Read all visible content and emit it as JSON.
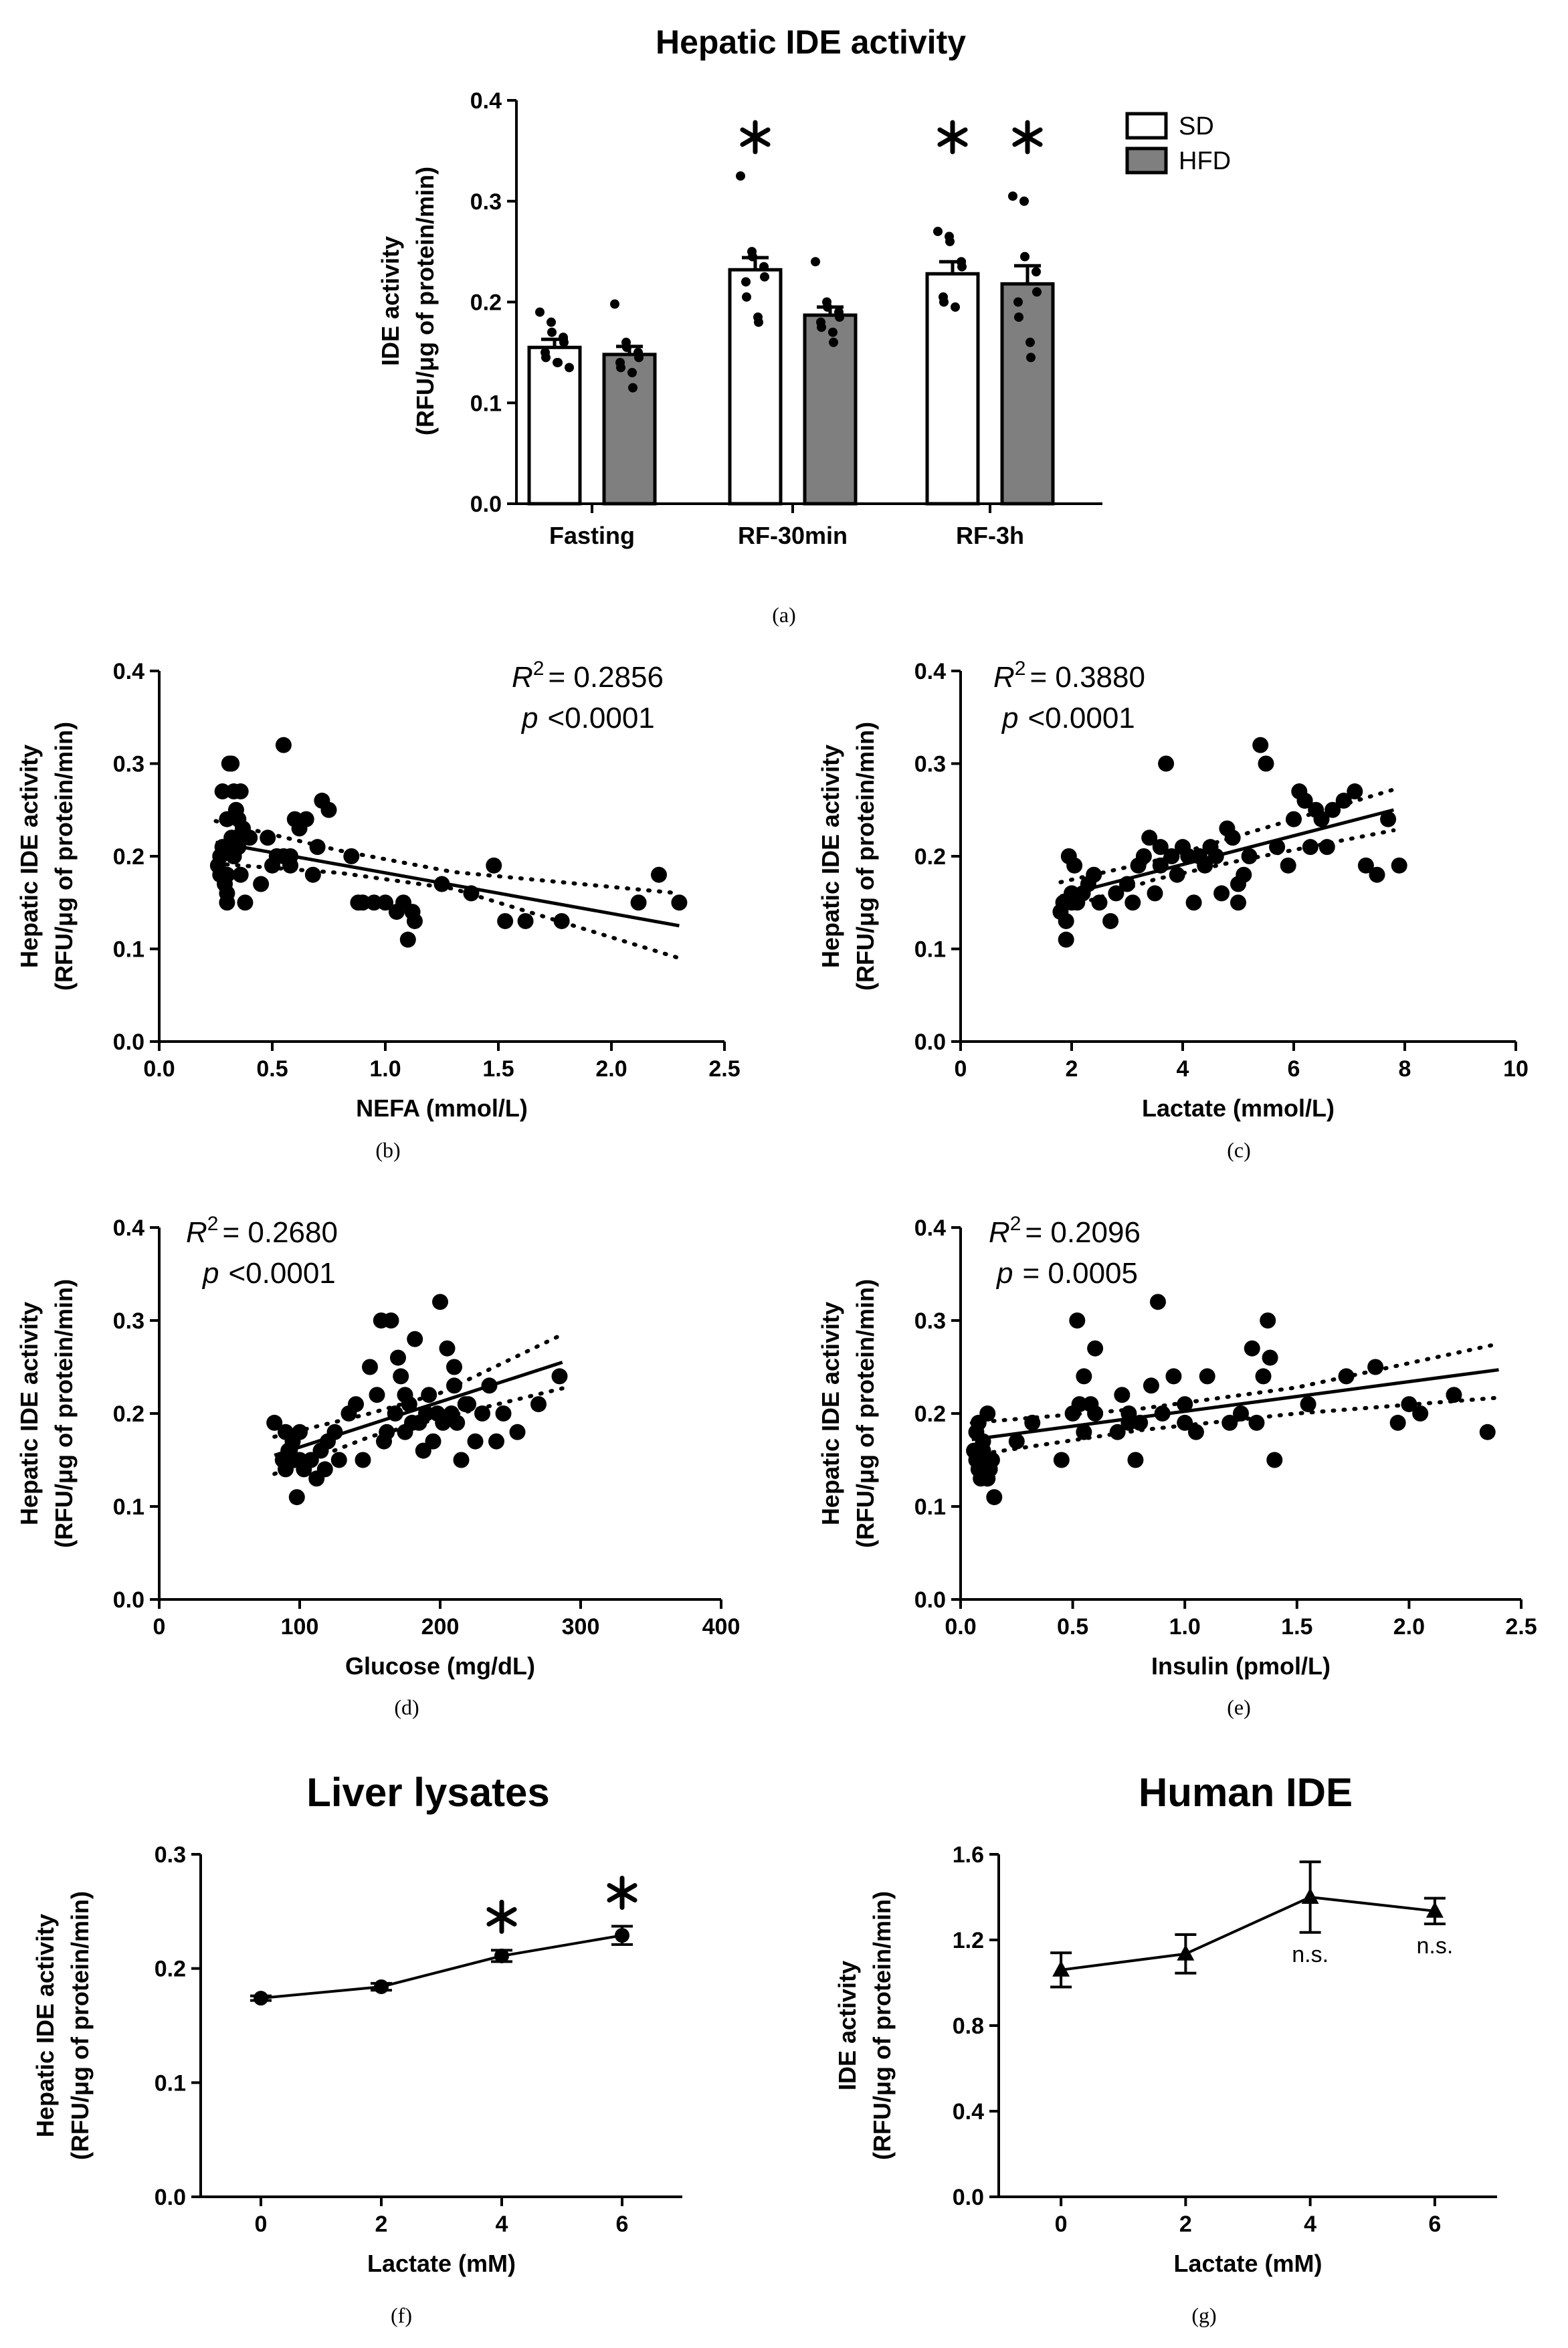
{
  "chart_data": [
    {
      "type": "bar",
      "panel_label": "(a)",
      "title": "Hepatic IDE activity",
      "ylabel_lines": [
        "IDE activity",
        "(RFU/μg of protein/min)"
      ],
      "xlabel": "",
      "ylim": [
        0,
        0.4
      ],
      "yticks": [
        "0.0",
        "0.1",
        "0.2",
        "0.3",
        "0.4"
      ],
      "categories": [
        "Fasting",
        "RF-30min",
        "RF-3h"
      ],
      "legend_position": "top-right",
      "series": [
        {
          "name": "SD",
          "color": "#ffffff",
          "values": [
            0.155,
            0.232,
            0.228
          ],
          "sem": [
            0.008,
            0.012,
            0.012
          ],
          "significance": [
            "",
            "*",
            "*"
          ],
          "points": [
            [
              0.19,
              0.18,
              0.17,
              0.165,
              0.16,
              0.15,
              0.145,
              0.14,
              0.14,
              0.135
            ],
            [
              0.325,
              0.25,
              0.245,
              0.235,
              0.225,
              0.22,
              0.205,
              0.185,
              0.18
            ],
            [
              0.27,
              0.265,
              0.26,
              0.24,
              0.235,
              0.205,
              0.2,
              0.195
            ]
          ]
        },
        {
          "name": "HFD",
          "color": "#7f7f7f",
          "values": [
            0.148,
            0.187,
            0.218
          ],
          "sem": [
            0.008,
            0.008,
            0.018
          ],
          "significance": [
            "",
            "",
            "*"
          ],
          "points": [
            [
              0.198,
              0.16,
              0.155,
              0.15,
              0.145,
              0.14,
              0.135,
              0.13,
              0.115
            ],
            [
              0.24,
              0.2,
              0.195,
              0.19,
              0.185,
              0.18,
              0.175,
              0.17,
              0.16
            ],
            [
              0.305,
              0.3,
              0.245,
              0.23,
              0.21,
              0.2,
              0.185,
              0.16,
              0.145
            ]
          ]
        }
      ]
    },
    {
      "type": "scatter",
      "panel_label": "(b)",
      "ylabel_lines": [
        "Hepatic IDE activity",
        "(RFU/μg of protein/min)"
      ],
      "xlabel": "NEFA (mmol/L)",
      "xlim": [
        0,
        2.5
      ],
      "ylim": [
        0,
        0.4
      ],
      "xticks": [
        "0.0",
        "0.5",
        "1.0",
        "1.5",
        "2.0",
        "2.5"
      ],
      "yticks": [
        "0.0",
        "0.1",
        "0.2",
        "0.3",
        "0.4"
      ],
      "r2_label": "R",
      "r2_sup": "2",
      "r2_value": "= 0.2856",
      "p_label": "p",
      "p_value": "<0.0001",
      "fit": {
        "x": [
          0.25,
          2.3
        ],
        "y": [
          0.215,
          0.125
        ]
      },
      "ci_upper": {
        "x": [
          0.25,
          0.8,
          1.3,
          2.3
        ],
        "y": [
          0.238,
          0.206,
          0.183,
          0.16
        ]
      },
      "ci_lower": {
        "x": [
          0.25,
          0.8,
          1.3,
          2.3
        ],
        "y": [
          0.192,
          0.182,
          0.165,
          0.09
        ]
      },
      "points": {
        "x": [
          0.26,
          0.27,
          0.28,
          0.29,
          0.3,
          0.3,
          0.31,
          0.32,
          0.33,
          0.33,
          0.34,
          0.35,
          0.36,
          0.37,
          0.28,
          0.3,
          0.32,
          0.34,
          0.35,
          0.38,
          0.4,
          0.45,
          0.48,
          0.5,
          0.52,
          0.55,
          0.58,
          0.6,
          0.62,
          0.65,
          0.68,
          0.7,
          0.72,
          0.75,
          0.55,
          0.58,
          0.3,
          0.32,
          0.36,
          0.85,
          0.88,
          0.9,
          0.95,
          1.0,
          1.05,
          1.08,
          1.1,
          1.12,
          1.13,
          1.25,
          1.38,
          1.48,
          1.53,
          1.62,
          1.78,
          2.12,
          2.21,
          2.3,
          0.33,
          0.27
        ],
        "y": [
          0.19,
          0.2,
          0.21,
          0.17,
          0.24,
          0.18,
          0.3,
          0.22,
          0.27,
          0.2,
          0.25,
          0.21,
          0.18,
          0.23,
          0.27,
          0.15,
          0.3,
          0.22,
          0.24,
          0.15,
          0.22,
          0.17,
          0.22,
          0.19,
          0.2,
          0.32,
          0.2,
          0.24,
          0.23,
          0.24,
          0.18,
          0.21,
          0.26,
          0.25,
          0.2,
          0.19,
          0.16,
          0.21,
          0.27,
          0.2,
          0.15,
          0.15,
          0.15,
          0.15,
          0.14,
          0.15,
          0.11,
          0.14,
          0.13,
          0.17,
          0.16,
          0.19,
          0.13,
          0.13,
          0.13,
          0.15,
          0.18,
          0.15,
          0.2,
          0.18
        ]
      }
    },
    {
      "type": "scatter",
      "panel_label": "(c)",
      "ylabel_lines": [
        "Hepatic IDE activity",
        "(RFU/μg of protein/min)"
      ],
      "xlabel": "Lactate (mmol/L)",
      "xlim": [
        0,
        10
      ],
      "ylim": [
        0,
        0.4
      ],
      "xticks": [
        "0",
        "2",
        "4",
        "6",
        "8",
        "10"
      ],
      "yticks": [
        "0.0",
        "0.1",
        "0.2",
        "0.3",
        "0.4"
      ],
      "r2_label": "R",
      "r2_sup": "2",
      "r2_value": "= 0.3880",
      "p_label": "p",
      "p_value": "<0.0001",
      "fit": {
        "x": [
          1.8,
          7.8
        ],
        "y": [
          0.157,
          0.25
        ]
      },
      "ci_upper": {
        "x": [
          1.8,
          3.5,
          5.0,
          7.8
        ],
        "y": [
          0.172,
          0.195,
          0.222,
          0.272
        ]
      },
      "ci_lower": {
        "x": [
          1.8,
          3.5,
          5.0,
          7.8
        ],
        "y": [
          0.142,
          0.175,
          0.195,
          0.228
        ]
      },
      "points": {
        "x": [
          1.8,
          1.85,
          1.9,
          1.95,
          2.0,
          2.05,
          2.1,
          2.2,
          2.3,
          2.4,
          2.5,
          2.7,
          2.8,
          3.0,
          3.1,
          3.3,
          3.4,
          3.5,
          3.6,
          3.7,
          3.8,
          3.9,
          4.0,
          4.1,
          4.2,
          4.3,
          4.4,
          4.5,
          4.6,
          4.7,
          4.8,
          4.9,
          5.0,
          5.1,
          5.2,
          5.4,
          5.5,
          5.7,
          5.9,
          6.0,
          6.1,
          6.2,
          6.3,
          6.4,
          6.5,
          6.6,
          6.7,
          6.9,
          7.1,
          7.3,
          7.5,
          7.7,
          7.9,
          1.9,
          2.0,
          3.2,
          3.6,
          4.3,
          5.0,
          6.2
        ],
        "y": [
          0.14,
          0.15,
          0.11,
          0.2,
          0.16,
          0.19,
          0.15,
          0.16,
          0.17,
          0.18,
          0.15,
          0.13,
          0.16,
          0.17,
          0.15,
          0.2,
          0.22,
          0.16,
          0.19,
          0.3,
          0.2,
          0.18,
          0.21,
          0.2,
          0.15,
          0.2,
          0.19,
          0.21,
          0.2,
          0.16,
          0.23,
          0.22,
          0.15,
          0.18,
          0.2,
          0.32,
          0.3,
          0.21,
          0.19,
          0.24,
          0.27,
          0.26,
          0.21,
          0.25,
          0.24,
          0.21,
          0.25,
          0.26,
          0.27,
          0.19,
          0.18,
          0.24,
          0.19,
          0.13,
          0.15,
          0.19,
          0.21,
          0.2,
          0.17,
          0.26
        ]
      }
    },
    {
      "type": "scatter",
      "panel_label": "(d)",
      "ylabel_lines": [
        "Hepatic IDE activity",
        "(RFU/μg of protein/min)"
      ],
      "xlabel": "Glucose (mg/dL)",
      "xlim": [
        0,
        400
      ],
      "ylim": [
        0,
        0.4
      ],
      "xticks": [
        "0",
        "100",
        "200",
        "300",
        "400"
      ],
      "yticks": [
        "0.0",
        "0.1",
        "0.2",
        "0.3",
        "0.4"
      ],
      "r2_label": "R",
      "r2_sup": "2",
      "r2_value": "= 0.2680",
      "p_label": "p",
      "p_value": "<0.0001",
      "fit": {
        "x": [
          82,
          287
        ],
        "y": [
          0.155,
          0.255
        ]
      },
      "ci_upper": {
        "x": [
          82,
          150,
          200,
          287
        ],
        "y": [
          0.175,
          0.2,
          0.222,
          0.285
        ]
      },
      "ci_lower": {
        "x": [
          82,
          150,
          200,
          287
        ],
        "y": [
          0.135,
          0.175,
          0.195,
          0.227
        ]
      },
      "points": {
        "x": [
          82,
          88,
          90,
          92,
          95,
          95,
          98,
          100,
          100,
          103,
          108,
          112,
          115,
          118,
          120,
          125,
          128,
          135,
          140,
          145,
          150,
          155,
          158,
          162,
          165,
          168,
          170,
          172,
          175,
          178,
          180,
          182,
          185,
          188,
          190,
          192,
          195,
          198,
          200,
          202,
          205,
          208,
          210,
          212,
          215,
          218,
          220,
          225,
          230,
          235,
          240,
          245,
          255,
          270,
          285,
          90,
          93,
          160,
          175,
          210
        ],
        "y": [
          0.19,
          0.15,
          0.14,
          0.16,
          0.17,
          0.15,
          0.11,
          0.18,
          0.15,
          0.14,
          0.15,
          0.13,
          0.16,
          0.14,
          0.17,
          0.18,
          0.15,
          0.2,
          0.21,
          0.15,
          0.25,
          0.22,
          0.3,
          0.18,
          0.3,
          0.2,
          0.26,
          0.24,
          0.18,
          0.21,
          0.19,
          0.28,
          0.19,
          0.16,
          0.2,
          0.22,
          0.17,
          0.2,
          0.32,
          0.19,
          0.27,
          0.2,
          0.25,
          0.19,
          0.15,
          0.21,
          0.21,
          0.17,
          0.2,
          0.23,
          0.17,
          0.2,
          0.18,
          0.21,
          0.24,
          0.18,
          0.16,
          0.17,
          0.22,
          0.23
        ]
      }
    },
    {
      "type": "scatter",
      "panel_label": "(e)",
      "ylabel_lines": [
        "Hepatic IDE activity",
        "(RFU/μg of protein/min)"
      ],
      "xlabel": "Insulin (pmol/L)",
      "xlim": [
        0,
        2.5
      ],
      "ylim": [
        0,
        0.4
      ],
      "xticks": [
        "0.0",
        "0.5",
        "1.0",
        "1.5",
        "2.0",
        "2.5"
      ],
      "yticks": [
        "0.0",
        "0.1",
        "0.2",
        "0.3",
        "0.4"
      ],
      "r2_label": "R",
      "r2_sup": "2",
      "r2_value": "= 0.2096",
      "p_label": "p",
      "p_value": "= 0.0005",
      "fit": {
        "x": [
          0.05,
          2.4
        ],
        "y": [
          0.172,
          0.247
        ]
      },
      "ci_upper": {
        "x": [
          0.05,
          0.8,
          1.5,
          2.4
        ],
        "y": [
          0.19,
          0.205,
          0.228,
          0.275
        ]
      },
      "ci_lower": {
        "x": [
          0.05,
          0.8,
          1.5,
          2.4
        ],
        "y": [
          0.155,
          0.182,
          0.2,
          0.217
        ]
      },
      "points": {
        "x": [
          0.06,
          0.07,
          0.08,
          0.08,
          0.09,
          0.1,
          0.1,
          0.11,
          0.12,
          0.12,
          0.13,
          0.14,
          0.15,
          0.07,
          0.09,
          0.11,
          0.13,
          0.25,
          0.32,
          0.45,
          0.5,
          0.52,
          0.53,
          0.55,
          0.58,
          0.6,
          0.7,
          0.72,
          0.75,
          0.78,
          0.8,
          0.85,
          0.88,
          0.9,
          0.95,
          1.0,
          1.05,
          1.1,
          1.2,
          1.3,
          1.32,
          1.35,
          1.37,
          1.38,
          1.4,
          1.55,
          1.72,
          1.85,
          1.95,
          2.0,
          2.05,
          2.2,
          2.35,
          0.12,
          0.1,
          0.6,
          0.75,
          1.0,
          1.25,
          0.55
        ],
        "y": [
          0.16,
          0.15,
          0.14,
          0.19,
          0.13,
          0.17,
          0.14,
          0.15,
          0.2,
          0.13,
          0.14,
          0.15,
          0.11,
          0.18,
          0.16,
          0.15,
          0.14,
          0.17,
          0.19,
          0.15,
          0.2,
          0.3,
          0.21,
          0.24,
          0.21,
          0.27,
          0.18,
          0.22,
          0.19,
          0.15,
          0.19,
          0.23,
          0.32,
          0.2,
          0.24,
          0.19,
          0.18,
          0.24,
          0.19,
          0.27,
          0.19,
          0.24,
          0.3,
          0.26,
          0.15,
          0.21,
          0.24,
          0.25,
          0.19,
          0.21,
          0.2,
          0.22,
          0.18,
          0.13,
          0.16,
          0.2,
          0.2,
          0.21,
          0.2,
          0.18
        ]
      }
    },
    {
      "type": "line",
      "panel_label": "(f)",
      "title": "Liver lysates",
      "ylabel_lines": [
        "Hepatic IDE activity",
        "(RFU/μg of protein/min)"
      ],
      "xlabel": "Lactate (mM)",
      "xlim": [
        -1,
        7
      ],
      "ylim": [
        0,
        0.3
      ],
      "xticks": [
        "0",
        "2",
        "4",
        "6"
      ],
      "yticks": [
        "0.0",
        "0.1",
        "0.2",
        "0.3"
      ],
      "marker": "circle",
      "x": [
        0,
        2,
        4,
        6
      ],
      "values": [
        0.174,
        0.184,
        0.211,
        0.229
      ],
      "sem": [
        0.002,
        0.003,
        0.005,
        0.008
      ],
      "annotations": [
        "",
        "",
        "*",
        "*"
      ]
    },
    {
      "type": "line",
      "panel_label": "(g)",
      "title": "Human IDE",
      "ylabel_lines": [
        "IDE activity",
        "(RFU/μg of protein/min)"
      ],
      "xlabel": "Lactate (mM)",
      "xlim": [
        -1,
        7
      ],
      "ylim": [
        0,
        1.6
      ],
      "xticks": [
        "0",
        "2",
        "4",
        "6"
      ],
      "yticks": [
        "0.0",
        "0.4",
        "0.8",
        "1.2",
        "1.6"
      ],
      "marker": "triangle",
      "x": [
        0,
        2,
        4,
        6
      ],
      "values": [
        1.06,
        1.135,
        1.4,
        1.335
      ],
      "sem": [
        0.08,
        0.09,
        0.165,
        0.06
      ],
      "annotations": [
        "",
        "",
        "n.s.",
        "n.s."
      ]
    }
  ]
}
